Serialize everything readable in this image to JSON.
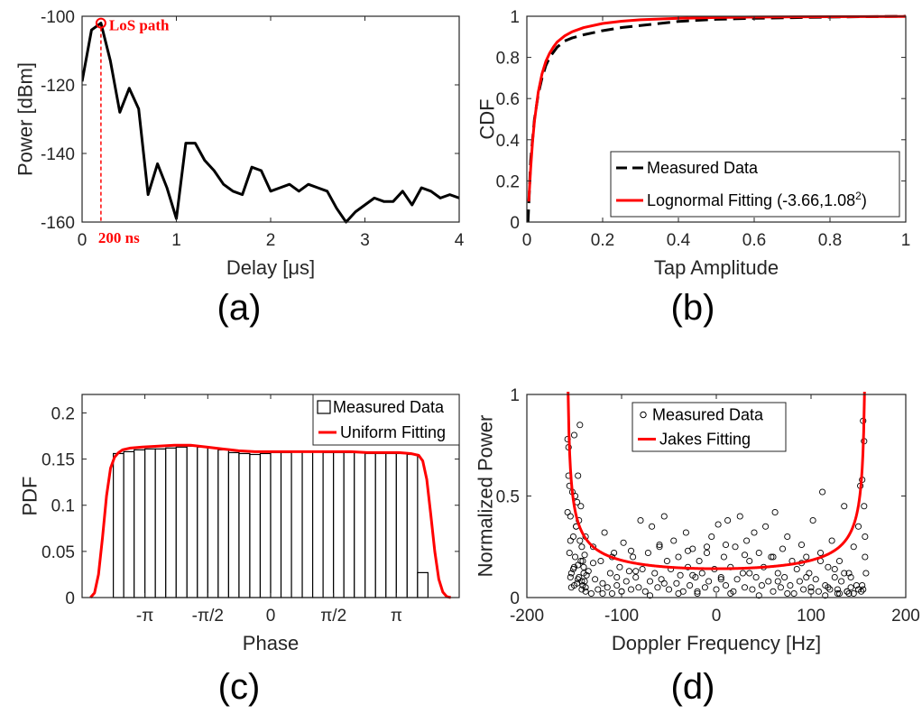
{
  "chart_data": [
    {
      "id": "a",
      "type": "line",
      "panel_label": "(a)",
      "xlabel": "Delay [μs]",
      "ylabel": "Power [dBm]",
      "xlim": [
        0,
        4
      ],
      "ylim": [
        -160,
        -100
      ],
      "xticks": [
        0,
        1,
        2,
        3,
        4
      ],
      "yticks": [
        -160,
        -140,
        -120,
        -100
      ],
      "grid": false,
      "series": [
        {
          "color": "#000000",
          "x": [
            0,
            0.1,
            0.2,
            0.3,
            0.4,
            0.5,
            0.6,
            0.7,
            0.8,
            0.9,
            1.0,
            1.1,
            1.2,
            1.3,
            1.4,
            1.5,
            1.6,
            1.7,
            1.8,
            1.9,
            2.0,
            2.1,
            2.2,
            2.3,
            2.4,
            2.5,
            2.6,
            2.7,
            2.8,
            2.9,
            3.0,
            3.1,
            3.2,
            3.3,
            3.4,
            3.5,
            3.6,
            3.7,
            3.8,
            3.9,
            4.0
          ],
          "y": [
            -119,
            -104,
            -102,
            -113,
            -128,
            -121,
            -127,
            -152,
            -143,
            -150,
            -159,
            -137,
            -137,
            -142,
            -145,
            -149,
            -151,
            -152,
            -144,
            -145,
            -151,
            -150,
            -149,
            -151,
            -149,
            -150,
            -151,
            -156,
            -160,
            -157,
            -155,
            -153,
            -154,
            -154,
            -151,
            -155,
            -150,
            -151,
            -153,
            -152,
            -153
          ]
        }
      ],
      "annotations": [
        {
          "text": "LoS path",
          "x": 0.2,
          "y": -102,
          "color": "#ff0000",
          "marker": "circle"
        },
        {
          "text": "200 ns",
          "x": 0.2,
          "y": -160,
          "color": "#ff0000",
          "style": "dashed-vertical"
        }
      ]
    },
    {
      "id": "b",
      "type": "line",
      "panel_label": "(b)",
      "xlabel": "Tap Amplitude",
      "ylabel": "CDF",
      "xlim": [
        0,
        1
      ],
      "ylim": [
        0,
        1
      ],
      "xticks": [
        0,
        0.2,
        0.4,
        0.6,
        0.8,
        1
      ],
      "yticks": [
        0,
        0.2,
        0.4,
        0.6,
        0.8,
        1
      ],
      "grid": false,
      "legend": {
        "position": "bottom-right",
        "entries": [
          {
            "label": "Measured Data",
            "style": "dashed",
            "color": "#000000"
          },
          {
            "label": "Lognormal Fitting (-3.66,1.08",
            "superscript": "2",
            "label_suffix": ")",
            "style": "solid",
            "color": "#ff0000"
          }
        ]
      },
      "series": [
        {
          "name": "Measured Data",
          "color": "#000000",
          "style": "dashed",
          "x": [
            0.003,
            0.006,
            0.01,
            0.02,
            0.03,
            0.04,
            0.05,
            0.06,
            0.08,
            0.1,
            0.12,
            0.15,
            0.2,
            0.25,
            0.3,
            0.35,
            0.4,
            0.5,
            0.6,
            0.7,
            0.8,
            0.9,
            1.0
          ],
          "y": [
            0.0,
            0.12,
            0.3,
            0.5,
            0.62,
            0.7,
            0.76,
            0.8,
            0.85,
            0.88,
            0.895,
            0.91,
            0.93,
            0.945,
            0.955,
            0.965,
            0.975,
            0.985,
            0.99,
            0.993,
            0.996,
            0.998,
            1.0
          ]
        },
        {
          "name": "Lognormal Fitting",
          "color": "#ff0000",
          "style": "solid",
          "x": [
            0.005,
            0.01,
            0.015,
            0.02,
            0.03,
            0.04,
            0.05,
            0.06,
            0.07,
            0.08,
            0.1,
            0.12,
            0.15,
            0.2,
            0.25,
            0.3,
            0.4,
            0.5,
            0.6,
            0.8,
            1.0
          ],
          "y": [
            0.1,
            0.26,
            0.39,
            0.49,
            0.63,
            0.72,
            0.78,
            0.82,
            0.85,
            0.875,
            0.905,
            0.925,
            0.945,
            0.965,
            0.976,
            0.983,
            0.99,
            0.994,
            0.996,
            0.998,
            0.999
          ]
        }
      ]
    },
    {
      "id": "c",
      "type": "bar",
      "panel_label": "(c)",
      "xlabel": "Phase",
      "ylabel": "PDF",
      "xlim": [
        -4.71,
        4.71
      ],
      "ylim": [
        0,
        0.22
      ],
      "xticks": [
        -3.1416,
        -1.5708,
        0,
        1.5708,
        3.1416
      ],
      "xticklabels": [
        "-π",
        "-π/2",
        "0",
        "π/2",
        "π"
      ],
      "yticks": [
        0,
        0.05,
        0.1,
        0.15,
        0.2
      ],
      "grid": false,
      "legend": {
        "position": "top-right",
        "entries": [
          {
            "label": "Measured Data",
            "style": "bar",
            "color": "#000000"
          },
          {
            "label": "Uniform Fitting",
            "style": "solid",
            "color": "#ff0000"
          }
        ]
      },
      "histogram": {
        "name": "Measured Data",
        "bin_edges": [
          -3.93,
          -3.67,
          -3.41,
          -3.14,
          -2.88,
          -2.62,
          -2.36,
          -2.09,
          -1.83,
          -1.57,
          -1.31,
          -1.05,
          -0.79,
          -0.52,
          -0.26,
          0.0,
          0.26,
          0.52,
          0.79,
          1.05,
          1.31,
          1.57,
          1.83,
          2.09,
          2.36,
          2.62,
          2.88,
          3.14,
          3.41,
          3.67,
          3.93
        ],
        "values": [
          0.156,
          0.158,
          0.16,
          0.161,
          0.161,
          0.162,
          0.163,
          0.164,
          0.163,
          0.162,
          0.16,
          0.157,
          0.156,
          0.155,
          0.156,
          0.157,
          0.157,
          0.158,
          0.158,
          0.158,
          0.157,
          0.157,
          0.157,
          0.157,
          0.156,
          0.156,
          0.156,
          0.156,
          0.155,
          0.027
        ]
      },
      "series": [
        {
          "name": "Uniform Fitting",
          "color": "#ff0000",
          "style": "solid",
          "x": [
            -4.5,
            -4.4,
            -4.3,
            -4.2,
            -4.1,
            -4.0,
            -3.9,
            -3.8,
            -3.7,
            -3.5,
            -3.2,
            -2.8,
            -2.4,
            -2.0,
            -1.6,
            -1.2,
            -0.8,
            -0.4,
            0.0,
            0.4,
            0.8,
            1.2,
            1.6,
            2.0,
            2.4,
            2.8,
            3.2,
            3.5,
            3.7,
            3.8,
            3.9,
            4.0,
            4.1,
            4.2,
            4.3,
            4.4,
            4.5
          ],
          "y": [
            0.0,
            0.005,
            0.025,
            0.065,
            0.11,
            0.14,
            0.152,
            0.157,
            0.16,
            0.162,
            0.163,
            0.164,
            0.165,
            0.165,
            0.163,
            0.161,
            0.159,
            0.158,
            0.158,
            0.158,
            0.158,
            0.158,
            0.158,
            0.158,
            0.157,
            0.157,
            0.157,
            0.156,
            0.154,
            0.148,
            0.128,
            0.09,
            0.05,
            0.02,
            0.006,
            0.001,
            0.0
          ]
        }
      ]
    },
    {
      "id": "d",
      "type": "scatter",
      "panel_label": "(d)",
      "xlabel": "Doppler Frequency [Hz]",
      "ylabel": "Normalized Power",
      "xlim": [
        -200,
        200
      ],
      "ylim": [
        0,
        1
      ],
      "xticks": [
        -200,
        -100,
        0,
        100,
        200
      ],
      "yticks": [
        0,
        0.5,
        1
      ],
      "grid": false,
      "legend": {
        "position": "top-center",
        "entries": [
          {
            "label": "Measured Data",
            "style": "circle",
            "color": "#000000"
          },
          {
            "label": "Jakes Fitting",
            "style": "solid",
            "color": "#ff0000"
          }
        ]
      },
      "fit": {
        "name": "Jakes Fitting",
        "color": "#ff0000",
        "max_doppler": 158,
        "min_value": 0.142
      },
      "series": [
        {
          "name": "Measured Data",
          "marker": "circle",
          "color": "#000000",
          "x": [
            -157,
            -156,
            -155,
            -154,
            -153,
            -152,
            -151,
            -150,
            -149,
            -148,
            -147,
            -146,
            -145,
            -144,
            -143,
            -142,
            -141,
            -140,
            -139,
            -138,
            -157,
            -155,
            -153,
            -150,
            -148,
            -146,
            -144,
            -142,
            -140,
            -138,
            -156,
            -154,
            -151,
            -149,
            -147,
            -145,
            -143,
            -141,
            -139,
            -137,
            -154,
            -150,
            -146,
            -142,
            -138,
            -135,
            -132,
            -130,
            -128,
            -125,
            -122,
            -120,
            -118,
            -115,
            -112,
            -110,
            -108,
            -105,
            -102,
            -100,
            -98,
            -95,
            -92,
            -90,
            -88,
            -85,
            -82,
            -80,
            -78,
            -75,
            -72,
            -70,
            -68,
            -65,
            -62,
            -60,
            -58,
            -55,
            -52,
            -50,
            -48,
            -45,
            -42,
            -40,
            -38,
            -35,
            -32,
            -30,
            -28,
            -25,
            -22,
            -20,
            -18,
            -15,
            -12,
            -10,
            -8,
            -5,
            -2,
            0,
            2,
            5,
            8,
            10,
            12,
            15,
            18,
            20,
            22,
            25,
            28,
            30,
            32,
            35,
            38,
            40,
            42,
            45,
            48,
            50,
            52,
            55,
            58,
            60,
            62,
            65,
            68,
            70,
            72,
            75,
            78,
            80,
            82,
            85,
            88,
            90,
            92,
            95,
            98,
            100,
            102,
            105,
            108,
            110,
            112,
            115,
            118,
            120,
            122,
            125,
            128,
            130,
            132,
            135,
            138,
            140,
            142,
            145,
            148,
            150,
            152,
            154,
            155,
            156,
            157,
            158,
            157,
            156,
            155,
            154,
            -130,
            -110,
            -90,
            -60,
            -30,
            -10,
            10,
            30,
            60,
            90,
            110,
            125,
            135,
            142,
            -120,
            -100,
            -70,
            -40,
            -20,
            15,
            45,
            75,
            100,
            115,
            130,
            140,
            -105,
            -85,
            -55,
            -25,
            5,
            35,
            65,
            95,
            118,
            128,
            138,
            145,
            150,
            153
          ],
          "y": [
            0.78,
            0.74,
            0.55,
            0.4,
            0.12,
            0.52,
            0.3,
            0.8,
            0.2,
            0.35,
            0.47,
            0.6,
            0.1,
            0.85,
            0.45,
            0.25,
            0.18,
            0.15,
            0.08,
            0.05,
            0.42,
            0.22,
            0.05,
            0.15,
            0.35,
            0.09,
            0.28,
            0.04,
            0.12,
            0.3,
            0.6,
            0.28,
            0.14,
            0.5,
            0.07,
            0.38,
            0.18,
            0.06,
            0.21,
            0.11,
            0.1,
            0.06,
            0.16,
            0.08,
            0.03,
            0.13,
            0.02,
            0.25,
            0.09,
            0.04,
            0.18,
            0.07,
            0.32,
            0.05,
            0.12,
            0.02,
            0.22,
            0.06,
            0.15,
            0.03,
            0.27,
            0.08,
            0.13,
            0.04,
            0.2,
            0.1,
            0.05,
            0.38,
            0.14,
            0.03,
            0.22,
            0.08,
            0.35,
            0.12,
            0.05,
            0.25,
            0.09,
            0.4,
            0.18,
            0.04,
            0.14,
            0.28,
            0.07,
            0.2,
            0.11,
            0.03,
            0.32,
            0.15,
            0.06,
            0.24,
            0.1,
            0.02,
            0.18,
            0.12,
            0.05,
            0.22,
            0.08,
            0.3,
            0.14,
            0.04,
            0.36,
            0.1,
            0.2,
            0.06,
            0.38,
            0.15,
            0.03,
            0.25,
            0.09,
            0.4,
            0.12,
            0.05,
            0.28,
            0.18,
            0.04,
            0.32,
            0.1,
            0.22,
            0.06,
            0.15,
            0.35,
            0.08,
            0.2,
            0.03,
            0.42,
            0.12,
            0.05,
            0.24,
            0.1,
            0.3,
            0.06,
            0.18,
            0.02,
            0.14,
            0.08,
            0.26,
            0.04,
            0.2,
            0.12,
            0.05,
            0.38,
            0.09,
            0.03,
            0.22,
            0.52,
            0.06,
            0.15,
            0.04,
            0.28,
            0.1,
            0.02,
            0.18,
            0.08,
            0.45,
            0.03,
            0.12,
            0.05,
            0.25,
            0.06,
            0.35,
            0.55,
            0.58,
            0.87,
            0.77,
            0.3,
            0.12,
            0.2,
            0.45,
            0.04,
            0.06,
            0.17,
            0.2,
            0.23,
            0.26,
            0.23,
            0.25,
            0.26,
            0.21,
            0.2,
            0.17,
            0.18,
            0.14,
            0.12,
            0.1,
            0.02,
            0.03,
            0.01,
            0.02,
            0.03,
            0.02,
            0.01,
            0.02,
            0.03,
            0.01,
            0.02,
            0.02,
            0.1,
            0.13,
            0.07,
            0.11,
            0.09,
            0.12,
            0.08,
            0.1,
            0.05,
            0.04,
            0.03,
            0.02,
            0.04,
            0.03
          ]
        }
      ]
    }
  ]
}
